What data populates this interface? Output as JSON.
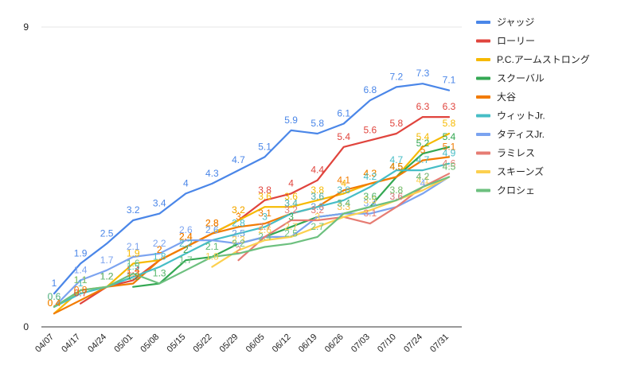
{
  "chart_data": {
    "type": "line",
    "title": "",
    "xlabel": "",
    "ylabel": "",
    "ylim": [
      0,
      9
    ],
    "yticks": [
      "0",
      "9"
    ],
    "grid": "horizontal",
    "legend_position": "right",
    "categories": [
      "04/07",
      "04/17",
      "04/24",
      "05/01",
      "05/08",
      "05/15",
      "05/22",
      "05/29",
      "06/05",
      "06/12",
      "06/19",
      "06/26",
      "07/03",
      "07/10",
      "07/24",
      "07/31"
    ],
    "series": [
      {
        "name": "ジャッジ",
        "color": "#4a86e8",
        "values": [
          1,
          1.9,
          2.5,
          3.2,
          3.4,
          4,
          4.3,
          4.7,
          5.1,
          5.9,
          5.8,
          6.1,
          6.8,
          7.2,
          7.3,
          7.1
        ]
      },
      {
        "name": "ローリー",
        "color": "#e0443d",
        "values": [
          null,
          0.7,
          1.2,
          1.4,
          2,
          2.4,
          2.8,
          3.2,
          3.8,
          4,
          4.4,
          5.4,
          5.6,
          5.8,
          6.3,
          6.3
        ]
      },
      {
        "name": "P.C.アームストロング",
        "color": "#f6b900",
        "values": [
          0.4,
          1.1,
          1.2,
          1.9,
          2,
          2.4,
          2.8,
          3.2,
          3.6,
          3.6,
          3.8,
          4,
          4.3,
          4.5,
          5.4,
          5.8
        ]
      },
      {
        "name": "スクーバル",
        "color": "#34a853",
        "values": [
          null,
          null,
          null,
          1.2,
          1.3,
          2,
          2.1,
          2.5,
          2.7,
          3,
          3.3,
          3.4,
          3.6,
          4.5,
          5.2,
          5.4
        ]
      },
      {
        "name": "大谷",
        "color": "#f27b00",
        "values": [
          0.4,
          0.8,
          1.2,
          1.3,
          2,
          2.4,
          2.8,
          3,
          3.1,
          3.4,
          3.6,
          4.1,
          4.3,
          4.5,
          5,
          5.1
        ]
      },
      {
        "name": "ウィットJr.",
        "color": "#46bdc6",
        "values": [
          0.6,
          1,
          1.2,
          1.5,
          1.8,
          2.2,
          2.6,
          2.8,
          3,
          3.4,
          3.6,
          3.8,
          4.2,
          4.7,
          4.7,
          4.9
        ]
      },
      {
        "name": "タティスJr.",
        "color": "#7ba3f0",
        "values": [
          0.6,
          1.4,
          1.7,
          2.1,
          2.2,
          2.6,
          2.6,
          2.5,
          2.7,
          2.7,
          3.3,
          3.4,
          3.4,
          3.6,
          4,
          4.5
        ]
      },
      {
        "name": "ラミレス",
        "color": "#e67c73",
        "values": [
          null,
          null,
          null,
          null,
          null,
          null,
          null,
          2,
          2.7,
          3.2,
          3.2,
          3.3,
          3.1,
          3.6,
          4.2,
          4.6
        ]
      },
      {
        "name": "スキーンズ",
        "color": "#fcd04f",
        "values": [
          null,
          null,
          null,
          null,
          null,
          null,
          1.8,
          2.3,
          2.6,
          2.7,
          3,
          3.3,
          3.5,
          3.8,
          4.1,
          4.5
        ]
      },
      {
        "name": "クロシェ",
        "color": "#6dc07f",
        "values": [
          0.6,
          1.1,
          1.2,
          1.6,
          1.3,
          1.7,
          2.1,
          2.2,
          2.4,
          2.5,
          2.7,
          3.4,
          3.6,
          3.8,
          4.2,
          4.5
        ]
      }
    ]
  }
}
